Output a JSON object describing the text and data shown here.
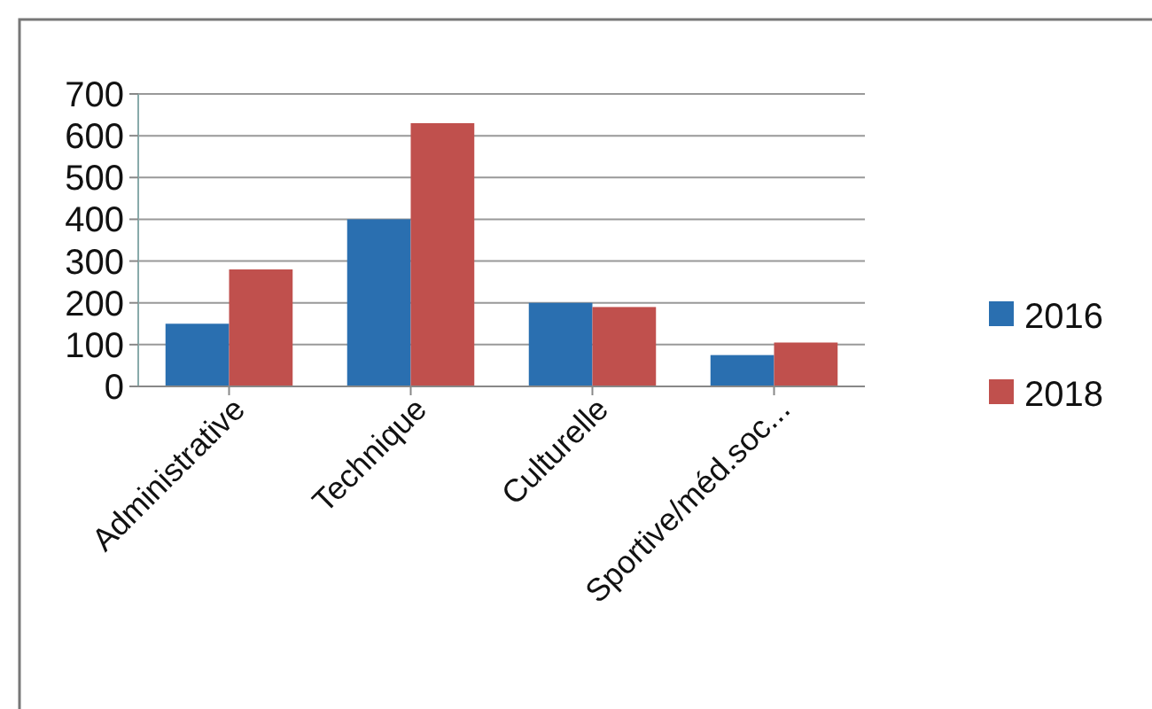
{
  "chart_data": {
    "type": "bar",
    "categories": [
      "Administrative",
      "Technique",
      "Culturelle",
      "Sportive/méd.soc..."
    ],
    "series": [
      {
        "name": "2016",
        "color": "#2a6fb0",
        "values": [
          150,
          400,
          200,
          75
        ]
      },
      {
        "name": "2018",
        "color": "#c0504d",
        "values": [
          280,
          630,
          190,
          105
        ]
      }
    ],
    "ylim": [
      0,
      700
    ],
    "yticks": [
      0,
      100,
      200,
      300,
      400,
      500,
      600,
      700
    ],
    "grid": "y",
    "legend": "right"
  }
}
